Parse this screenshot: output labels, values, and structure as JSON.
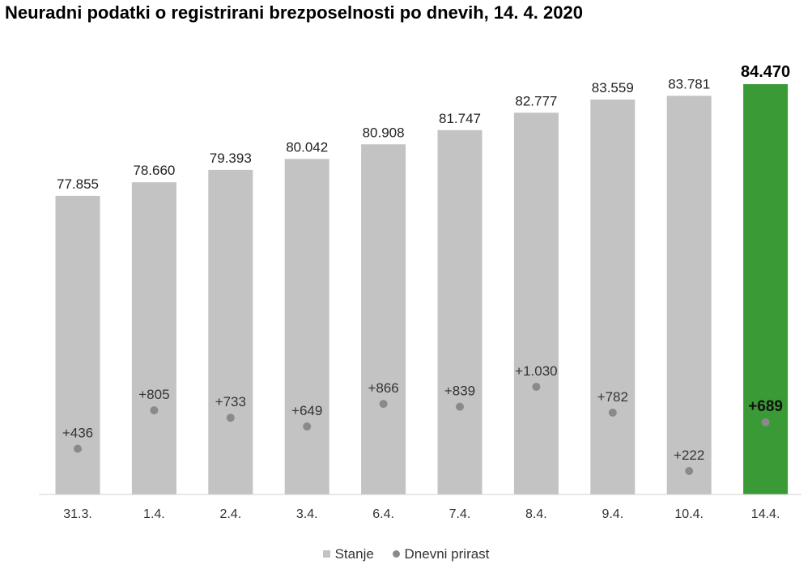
{
  "chart_data": {
    "type": "bar",
    "title": "Neuradni podatki o registrirani brezposelnosti po dnevih, 14. 4. 2020",
    "categories": [
      "31.3.",
      "1.4.",
      "2.4.",
      "3.4.",
      "6.4.",
      "7.4.",
      "8.4.",
      "9.4.",
      "10.4.",
      "14.4."
    ],
    "series": [
      {
        "name": "Stanje",
        "values": [
          77855,
          78660,
          79393,
          80042,
          80908,
          81747,
          82777,
          83559,
          83781,
          84470
        ],
        "labels": [
          "77.855",
          "78.660",
          "79.393",
          "80.042",
          "80.908",
          "81.747",
          "82.777",
          "83.559",
          "83.781",
          "84.470"
        ],
        "color": "#c3c3c3",
        "highlight_color": "#3a9a36"
      },
      {
        "name": "Dnevni prirast",
        "values": [
          436,
          805,
          733,
          649,
          866,
          839,
          1030,
          782,
          222,
          689
        ],
        "labels": [
          "+436",
          "+805",
          "+733",
          "+649",
          "+866",
          "+839",
          "+1.030",
          "+782",
          "+222",
          "+689"
        ],
        "color": "#8a8a8a"
      }
    ],
    "highlight_index": 9,
    "legend": "bottom-center",
    "grid": false
  }
}
